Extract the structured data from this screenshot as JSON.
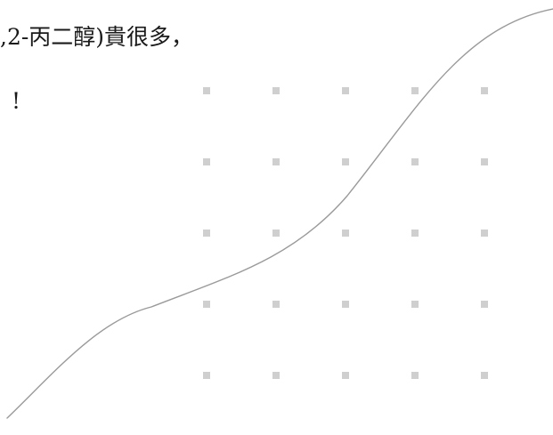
{
  "document": {
    "lines": [
      ",2-丙二醇)貴很多，",
      "!"
    ]
  },
  "decoration": {
    "dot_color": "#cfcfcf",
    "curve_color": "#9a9a9a",
    "dot_grid_rows": 5,
    "dot_grid_cols": 5
  }
}
